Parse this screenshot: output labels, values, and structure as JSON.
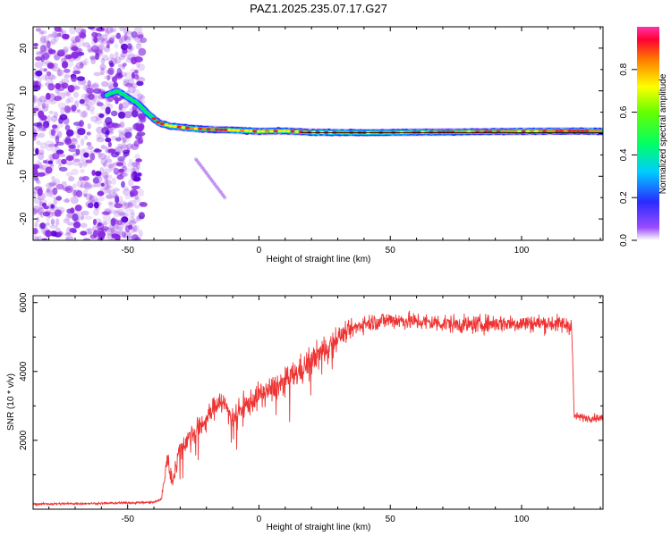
{
  "title": "PAZ1.2025.235.07.17.G27",
  "colors": {
    "signal": "#ee3333",
    "scatter": "#8a2be2",
    "frame": "#000000"
  },
  "chart_data": [
    {
      "type": "heatmap",
      "name": "spectrogram",
      "title": "PAZ1.2025.235.07.17.G27",
      "xlabel": "Height of straight line (km)",
      "ylabel": "Frequency (Hz)",
      "xlim": [
        -86,
        131
      ],
      "ylim": [
        -25,
        25
      ],
      "x_ticks": [
        -50,
        0,
        50,
        100
      ],
      "y_ticks": [
        -20,
        -10,
        0,
        10,
        20
      ],
      "noise_region_x": [
        -86,
        -44
      ],
      "ridge": {
        "x": [
          -58,
          -54,
          -50,
          -46,
          -42,
          -38,
          -34,
          -30,
          -25,
          -20,
          -10,
          0,
          10,
          20,
          40,
          60,
          80,
          100,
          120,
          131
        ],
        "y": [
          9,
          10,
          8.5,
          7,
          4.5,
          2.5,
          1.8,
          1.5,
          1.2,
          1.0,
          0.8,
          0.5,
          0.6,
          0.3,
          0.2,
          0.3,
          0.4,
          0.5,
          0.6,
          0.5
        ]
      },
      "streak": {
        "x": [
          -24,
          -13
        ],
        "y": [
          -6,
          -15
        ]
      },
      "colorbar": {
        "label": "Normalized spectral amplitude",
        "range": [
          0,
          1
        ],
        "ticks": [
          "0.0",
          "0.2",
          "0.4",
          "0.6",
          "0.8"
        ]
      }
    },
    {
      "type": "line",
      "name": "snr",
      "xlabel": "Height of straight line (km)",
      "ylabel": "SNR (10 * v/v)",
      "xlim": [
        -86,
        131
      ],
      "ylim": [
        0,
        6200
      ],
      "x_ticks": [
        -50,
        0,
        50,
        100
      ],
      "y_ticks": [
        2000,
        4000,
        6000
      ],
      "trend": {
        "x": [
          -86,
          -60,
          -40,
          -37,
          -35,
          -33,
          -30,
          -25,
          -20,
          -15,
          -10,
          -5,
          0,
          10,
          20,
          30,
          40,
          50,
          60,
          70,
          80,
          90,
          100,
          110,
          119,
          119.5,
          120,
          125,
          131
        ],
        "y": [
          150,
          170,
          200,
          300,
          1500,
          800,
          1800,
          2200,
          2600,
          3200,
          2700,
          3000,
          3300,
          3700,
          4300,
          5000,
          5400,
          5500,
          5450,
          5400,
          5350,
          5400,
          5400,
          5400,
          5350,
          4200,
          2700,
          2650,
          2650
        ]
      }
    }
  ]
}
